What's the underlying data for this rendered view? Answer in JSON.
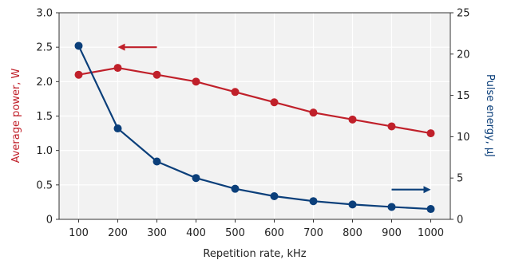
{
  "chart_data": {
    "type": "line",
    "xlabel": "Repetition rate, kHz",
    "ylabel_left": "Average power, W",
    "ylabel_right": "Pulse energy, µJ",
    "x": [
      100,
      200,
      300,
      400,
      500,
      600,
      700,
      800,
      900,
      1000
    ],
    "xlim": [
      50,
      1050
    ],
    "y_left_lim": [
      0,
      3.0
    ],
    "y_right_lim": [
      0,
      25
    ],
    "x_ticks": [
      "100",
      "200",
      "300",
      "400",
      "500",
      "600",
      "700",
      "800",
      "900",
      "1000"
    ],
    "y_left_ticks": [
      "0",
      "0.5",
      "1.0",
      "1.5",
      "2.0",
      "2.5",
      "3.0"
    ],
    "y_right_ticks": [
      "0",
      "5",
      "10",
      "15",
      "20",
      "25"
    ],
    "grid": true,
    "background": "#f2f2f2",
    "series": [
      {
        "axis": "left",
        "color": "#c0202a",
        "values": [
          2.1,
          2.2,
          2.1,
          2.0,
          1.85,
          1.7,
          1.55,
          1.45,
          1.35,
          1.25
        ]
      },
      {
        "axis": "right",
        "color": "#0b3f7a",
        "values": [
          21.0,
          11.0,
          7.0,
          5.0,
          3.7,
          2.8,
          2.2,
          1.8,
          1.5,
          1.25
        ]
      }
    ],
    "annotations": [
      {
        "type": "arrow",
        "series": 0,
        "direction": "left",
        "x_from": 300,
        "x_to": 200,
        "y": 2.5,
        "axis": "left"
      },
      {
        "type": "arrow",
        "series": 1,
        "direction": "right",
        "x_from": 900,
        "x_to": 1000,
        "y": 3.6,
        "axis": "right"
      }
    ]
  }
}
